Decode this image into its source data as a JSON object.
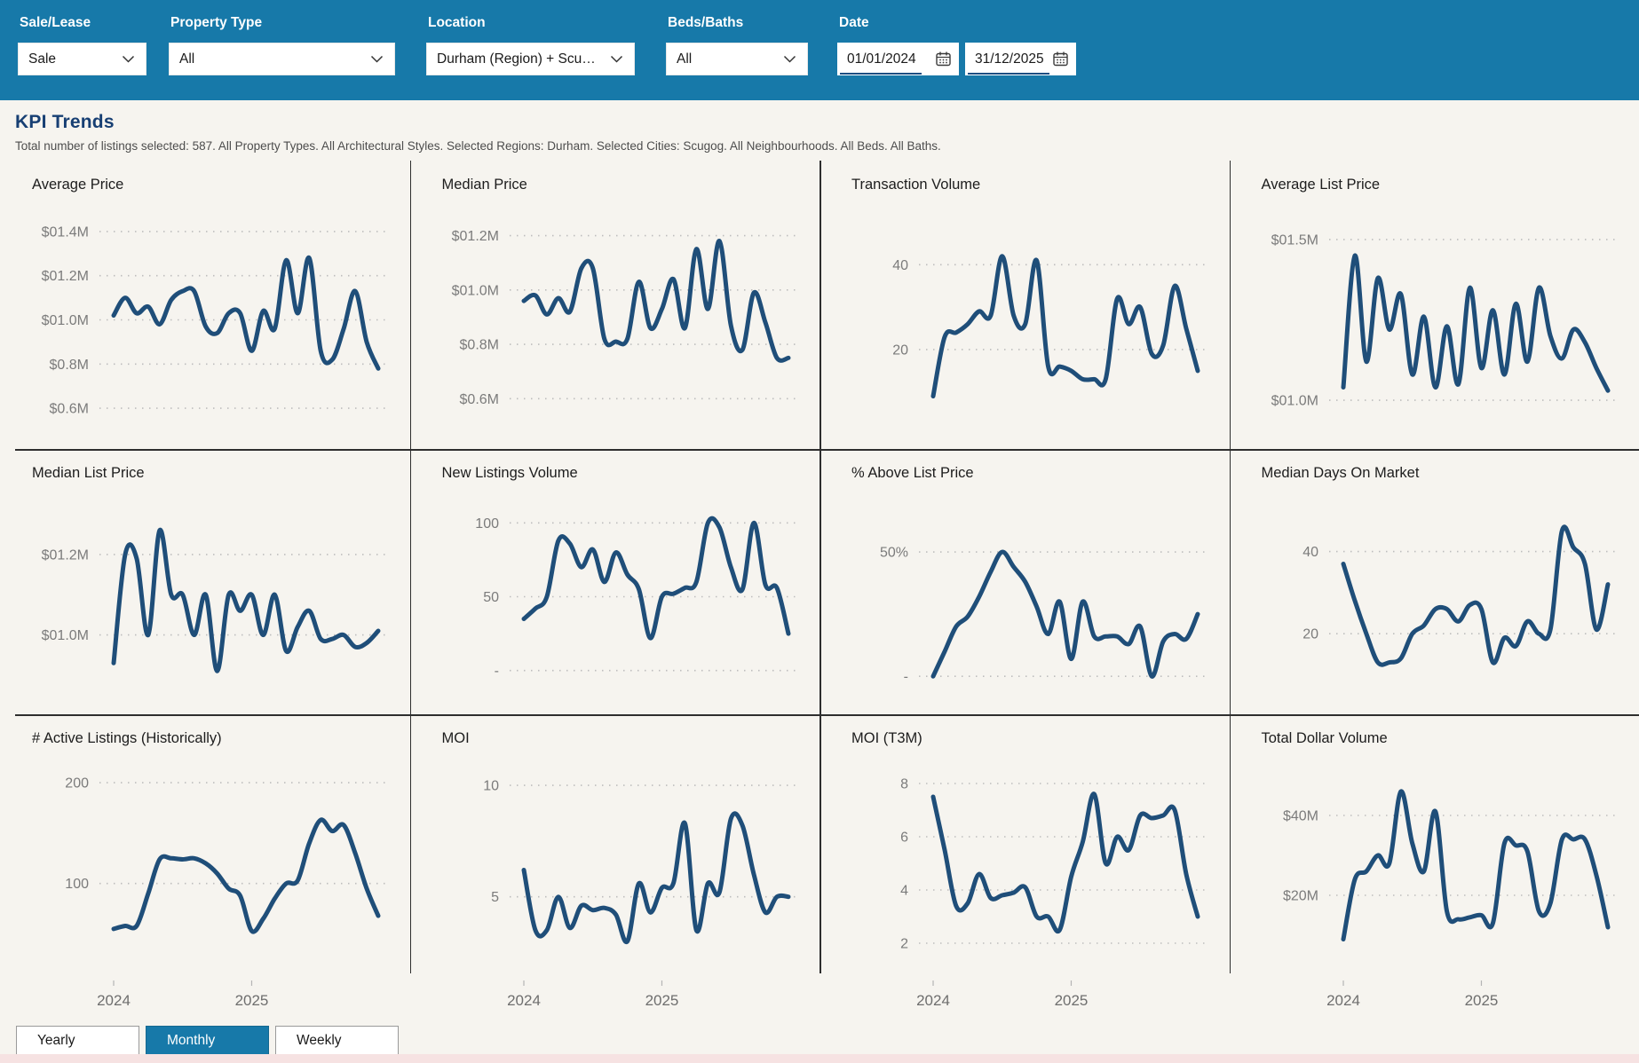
{
  "header": {
    "filters": [
      {
        "label": "Sale/Lease",
        "type": "select",
        "value": "Sale"
      },
      {
        "label": "Property Type",
        "type": "select",
        "value": "All"
      },
      {
        "label": "Location",
        "type": "select",
        "value": "Durham (Region) + Scugog …"
      },
      {
        "label": "Beds/Baths",
        "type": "select",
        "value": "All"
      },
      {
        "label": "Date",
        "type": "daterange",
        "from": "01/01/2024",
        "to": "31/12/2025"
      }
    ]
  },
  "title": "KPI Trends",
  "subtitle": "Total number of listings selected: 587. All Property Types. All Architectural Styles. Selected Regions: Durham. Selected Cities: Scugog. All Neighbourhoods. All Beds. All Baths.",
  "period_buttons": [
    {
      "label": "Yearly",
      "selected": false
    },
    {
      "label": "Monthly",
      "selected": true
    },
    {
      "label": "Weekly",
      "selected": false
    }
  ],
  "colors": {
    "header_bg": "#1779A9",
    "accent": "#1779A9",
    "line": "#1F4E79",
    "heading": "#173F73",
    "gridline": "#BDBDBD",
    "tick_text": "#7B7B7B",
    "divider": "#2E2E2E"
  },
  "chart_x": {
    "granularity": "monthly",
    "points": 24,
    "start": "2024-01",
    "end": "2025-12",
    "visible_year_labels": [
      "2024",
      "2025"
    ]
  },
  "chart_data": [
    {
      "type": "line",
      "title": "Average Price",
      "unit": "M$",
      "ticks": [
        {
          "v": 1.4,
          "label": "$01.4M"
        },
        {
          "v": 1.2,
          "label": "$01.2M"
        },
        {
          "v": 1.0,
          "label": "$01.0M"
        },
        {
          "v": 0.8,
          "label": "$0.8M"
        },
        {
          "v": 0.6,
          "label": "$0.6M"
        }
      ],
      "domain": [
        0.52,
        1.48
      ],
      "values": [
        1.02,
        1.1,
        1.03,
        1.06,
        0.98,
        1.09,
        1.13,
        1.13,
        0.97,
        0.94,
        1.03,
        1.03,
        0.86,
        1.04,
        0.96,
        1.27,
        1.03,
        1.28,
        0.86,
        0.82,
        0.96,
        1.13,
        0.9,
        0.78
      ]
    },
    {
      "type": "line",
      "title": "Median Price",
      "unit": "M$",
      "ticks": [
        {
          "v": 1.2,
          "label": "$01.2M"
        },
        {
          "v": 1.0,
          "label": "$01.0M"
        },
        {
          "v": 0.8,
          "label": "$0.8M"
        },
        {
          "v": 0.6,
          "label": "$0.6M"
        }
      ],
      "domain": [
        0.5,
        1.28
      ],
      "values": [
        0.96,
        0.98,
        0.91,
        0.97,
        0.92,
        1.08,
        1.08,
        0.82,
        0.81,
        0.82,
        1.03,
        0.86,
        0.93,
        1.04,
        0.86,
        1.15,
        0.93,
        1.18,
        0.87,
        0.78,
        0.99,
        0.88,
        0.75,
        0.75
      ]
    },
    {
      "type": "line",
      "title": "Transaction Volume",
      "unit": "count",
      "ticks": [
        {
          "v": 40,
          "label": "40"
        },
        {
          "v": 20,
          "label": "20"
        }
      ],
      "domain": [
        2,
        52
      ],
      "values": [
        9,
        23,
        24,
        26,
        29,
        28,
        42,
        28,
        26,
        41,
        16,
        16,
        15,
        13,
        13,
        13,
        32,
        26,
        30,
        19,
        21,
        35,
        25,
        15
      ]
    },
    {
      "type": "line",
      "title": "Average List Price",
      "unit": "M$",
      "ticks": [
        {
          "v": 1.5,
          "label": "$01.5M"
        },
        {
          "v": 1.0,
          "label": "$01.0M"
        }
      ],
      "domain": [
        0.92,
        1.58
      ],
      "values": [
        1.04,
        1.45,
        1.12,
        1.38,
        1.22,
        1.33,
        1.08,
        1.26,
        1.04,
        1.23,
        1.05,
        1.35,
        1.1,
        1.28,
        1.08,
        1.3,
        1.12,
        1.35,
        1.2,
        1.13,
        1.22,
        1.18,
        1.1,
        1.03
      ]
    },
    {
      "type": "line",
      "title": "Median List Price",
      "unit": "M$",
      "ticks": [
        {
          "v": 1.2,
          "label": "$01.2M"
        },
        {
          "v": 1.0,
          "label": "$01.0M"
        }
      ],
      "domain": [
        0.86,
        1.33
      ],
      "values": [
        0.93,
        1.2,
        1.19,
        1.0,
        1.26,
        1.1,
        1.1,
        1.0,
        1.1,
        0.91,
        1.1,
        1.06,
        1.1,
        1.0,
        1.1,
        0.96,
        1.02,
        1.06,
        0.99,
        0.99,
        1.0,
        0.97,
        0.98,
        1.01
      ]
    },
    {
      "type": "line",
      "title": "New Listings Volume",
      "unit": "count",
      "ticks": [
        {
          "v": 100,
          "label": "100"
        },
        {
          "v": 50,
          "label": "50"
        },
        {
          "v": 0,
          "label": "-"
        }
      ],
      "domain": [
        -14,
        114
      ],
      "values": [
        35,
        42,
        50,
        88,
        86,
        70,
        82,
        60,
        80,
        65,
        55,
        22,
        50,
        52,
        56,
        60,
        100,
        97,
        70,
        55,
        100,
        58,
        56,
        25
      ]
    },
    {
      "type": "line",
      "title": "% Above List Price",
      "unit": "%",
      "ticks": [
        {
          "v": 50,
          "label": "50%"
        },
        {
          "v": 0,
          "label": "-"
        }
      ],
      "domain": [
        -6,
        70
      ],
      "values": [
        0,
        10,
        20,
        24,
        32,
        42,
        50,
        44,
        38,
        28,
        17,
        30,
        7,
        30,
        16,
        16,
        16,
        13,
        20,
        0,
        14,
        17,
        15,
        25
      ]
    },
    {
      "type": "line",
      "title": "Median Days On Market",
      "unit": "days",
      "ticks": [
        {
          "v": 40,
          "label": "40"
        },
        {
          "v": 20,
          "label": "20"
        }
      ],
      "domain": [
        6,
        52
      ],
      "values": [
        37,
        28,
        20,
        13,
        13,
        14,
        20,
        22,
        26,
        26,
        23,
        27,
        26,
        13,
        19,
        17,
        23,
        20,
        21,
        45,
        41,
        37,
        21,
        32
      ]
    },
    {
      "type": "line",
      "title": "# Active Listings (Historically)",
      "unit": "count",
      "ticks": [
        {
          "v": 200,
          "label": "200"
        },
        {
          "v": 100,
          "label": "100"
        }
      ],
      "domain": [
        25,
        215
      ],
      "x_labels": [
        {
          "index": 0,
          "label": "2024"
        },
        {
          "index": 12,
          "label": "2025"
        }
      ],
      "values": [
        55,
        58,
        58,
        90,
        124,
        125,
        124,
        125,
        120,
        110,
        95,
        88,
        53,
        65,
        85,
        100,
        103,
        140,
        163,
        152,
        158,
        130,
        95,
        68
      ]
    },
    {
      "type": "line",
      "title": "MOI",
      "unit": "months",
      "ticks": [
        {
          "v": 10,
          "label": "10"
        },
        {
          "v": 5,
          "label": "5"
        }
      ],
      "domain": [
        2.2,
        10.8
      ],
      "x_labels": [
        {
          "index": 0,
          "label": "2024"
        },
        {
          "index": 12,
          "label": "2025"
        }
      ],
      "values": [
        6.2,
        3.5,
        3.5,
        5.0,
        3.6,
        4.6,
        4.4,
        4.5,
        4.2,
        3.0,
        5.6,
        4.3,
        5.4,
        5.6,
        8.3,
        3.5,
        5.6,
        5.2,
        8.5,
        8.2,
        6.0,
        4.3,
        5.0,
        5.0
      ]
    },
    {
      "type": "line",
      "title": "MOI (T3M)",
      "unit": "months",
      "ticks": [
        {
          "v": 8,
          "label": "8"
        },
        {
          "v": 6,
          "label": "6"
        },
        {
          "v": 4,
          "label": "4"
        },
        {
          "v": 2,
          "label": "2"
        }
      ],
      "domain": [
        1.4,
        8.6
      ],
      "x_labels": [
        {
          "index": 0,
          "label": "2024"
        },
        {
          "index": 12,
          "label": "2025"
        }
      ],
      "values": [
        7.5,
        5.5,
        3.4,
        3.5,
        4.6,
        3.7,
        3.8,
        3.9,
        4.1,
        3.0,
        3.0,
        2.5,
        4.5,
        5.8,
        7.6,
        5.0,
        6.0,
        5.5,
        6.8,
        6.7,
        6.8,
        7.0,
        4.6,
        3.0
      ]
    },
    {
      "type": "line",
      "title": "Total Dollar Volume",
      "unit": "M$",
      "ticks": [
        {
          "v": 40,
          "label": "$40M"
        },
        {
          "v": 20,
          "label": "$20M"
        }
      ],
      "domain": [
        4,
        52
      ],
      "x_labels": [
        {
          "index": 0,
          "label": "2024"
        },
        {
          "index": 12,
          "label": "2025"
        }
      ],
      "values": [
        9,
        24,
        26,
        30,
        28,
        46,
        33,
        26,
        41,
        16,
        14,
        14.5,
        15,
        13,
        33,
        32.5,
        31,
        16,
        18,
        34,
        34,
        34,
        25,
        12
      ]
    }
  ]
}
